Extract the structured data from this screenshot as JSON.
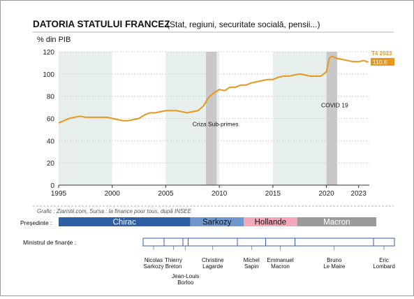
{
  "title": "DATORIA STATULUI FRANCEZ",
  "subtitle": "(Stat, regiuni, securitate socială, pensii...)",
  "colors": {
    "line": "#e8961e",
    "band": "#e6efec",
    "crisis": "#c8c8c8",
    "accent": "#e8961e"
  },
  "chart_data": {
    "type": "line",
    "title": "DATORIA STATULUI FRANCEZ",
    "subtitle": "(Stat, regiuni, securitate socială, pensii...)",
    "ylabel": "% din PIB",
    "xlabel": "",
    "xlim": [
      1995,
      2024
    ],
    "ylim": [
      0,
      120
    ],
    "xticks": [
      1995,
      2000,
      2005,
      2010,
      2015,
      2020,
      2023
    ],
    "yticks": [
      0,
      20,
      40,
      60,
      80,
      100,
      120
    ],
    "grid": true,
    "series": [
      {
        "name": "",
        "x": [
          1995,
          1995.5,
          1996,
          1996.5,
          1997,
          1997.5,
          1998,
          1998.5,
          1999,
          1999.5,
          2000,
          2000.5,
          2001,
          2001.5,
          2002,
          2002.5,
          2003,
          2003.5,
          2004,
          2004.5,
          2005,
          2005.5,
          2006,
          2006.5,
          2007,
          2007.5,
          2008,
          2008.5,
          2009,
          2009.5,
          2010,
          2010.5,
          2011,
          2011.5,
          2012,
          2012.5,
          2013,
          2013.5,
          2014,
          2014.5,
          2015,
          2015.5,
          2016,
          2016.5,
          2017,
          2017.5,
          2018,
          2018.5,
          2019,
          2019.5,
          2020,
          2020.25,
          2020.5,
          2020.75,
          2021,
          2021.5,
          2022,
          2022.5,
          2023,
          2023.5,
          2023.9
        ],
        "y": [
          56,
          58,
          60,
          61,
          62,
          61,
          61,
          61,
          61,
          61,
          60,
          59,
          58,
          58,
          59,
          60,
          63,
          65,
          65,
          66,
          67,
          67,
          67,
          66,
          65,
          66,
          67,
          71,
          79,
          83,
          86,
          85,
          88,
          88,
          90,
          90,
          92,
          93,
          94,
          95,
          95,
          97,
          98,
          98,
          99,
          100,
          99,
          98,
          98,
          98,
          102,
          114,
          116,
          115,
          114,
          113,
          112,
          111,
          111,
          112,
          110.6
        ]
      }
    ],
    "bands": [
      [
        1995,
        2000
      ],
      [
        2005,
        2010
      ],
      [
        2015,
        2020
      ]
    ],
    "crises": [
      [
        2008.75,
        2009.75
      ],
      [
        2020,
        2021
      ]
    ],
    "annotations": [
      {
        "text": "Criza Sub-primes",
        "x": 2007.5,
        "y": 53
      },
      {
        "text": "COVID 19",
        "x": 2019.5,
        "y": 70
      }
    ],
    "last_point": {
      "label": "T4 2023",
      "value": "110.6"
    }
  },
  "credit": "Grafic : Ziaristii.com, Sursa : la finance pour tous, după INSEE",
  "presidents_label": "Președinte :",
  "presidents": [
    {
      "name": "Chirac",
      "start": 1995,
      "end": 2007.3,
      "bg": "#2e5fa4",
      "fg": "#ffffff"
    },
    {
      "name": "Sarkozy",
      "start": 2007.3,
      "end": 2012.3,
      "bg": "#6f97cf",
      "fg": "#111111"
    },
    {
      "name": "Hollande",
      "start": 2012.3,
      "end": 2017.3,
      "bg": "#f4a9b8",
      "fg": "#111111"
    },
    {
      "name": "Macron",
      "start": 2017.3,
      "end": 2024.7,
      "bg": "#9b9b9b",
      "fg": "#ffffff"
    }
  ],
  "ministers_label": "Ministrul de finanțe :",
  "ministers_range": [
    2002.5,
    2026.5
  ],
  "ministers": [
    {
      "line1": "Nicolas",
      "line2": "Sarkozy",
      "line3": "",
      "start": 2002.5,
      "end": 2004.5
    },
    {
      "line1": "Thierry",
      "line2": "Breton",
      "line3": "",
      "start": 2004.5,
      "end": 2006.3
    },
    {
      "line1": "Jean-Louis",
      "line2": "Borloo",
      "line3": "",
      "start": 2006.3,
      "end": 2006.8,
      "below": true
    },
    {
      "line1": "Christine",
      "line2": "Lagarde",
      "line3": "",
      "start": 2006.8,
      "end": 2011.5
    },
    {
      "line1": "Michel",
      "line2": "Sapin",
      "line3": "",
      "start": 2011.5,
      "end": 2014.2
    },
    {
      "line1": "Emmanuel",
      "line2": "Macron",
      "line3": "",
      "start": 2014.2,
      "end": 2017.0
    },
    {
      "line1": "Bruno",
      "line2": "Le Maire",
      "line3": "",
      "start": 2017.0,
      "end": 2024.5
    },
    {
      "line1": "Eric",
      "line2": "Lombard",
      "line3": "",
      "start": 2024.5,
      "end": 2026.5
    }
  ]
}
